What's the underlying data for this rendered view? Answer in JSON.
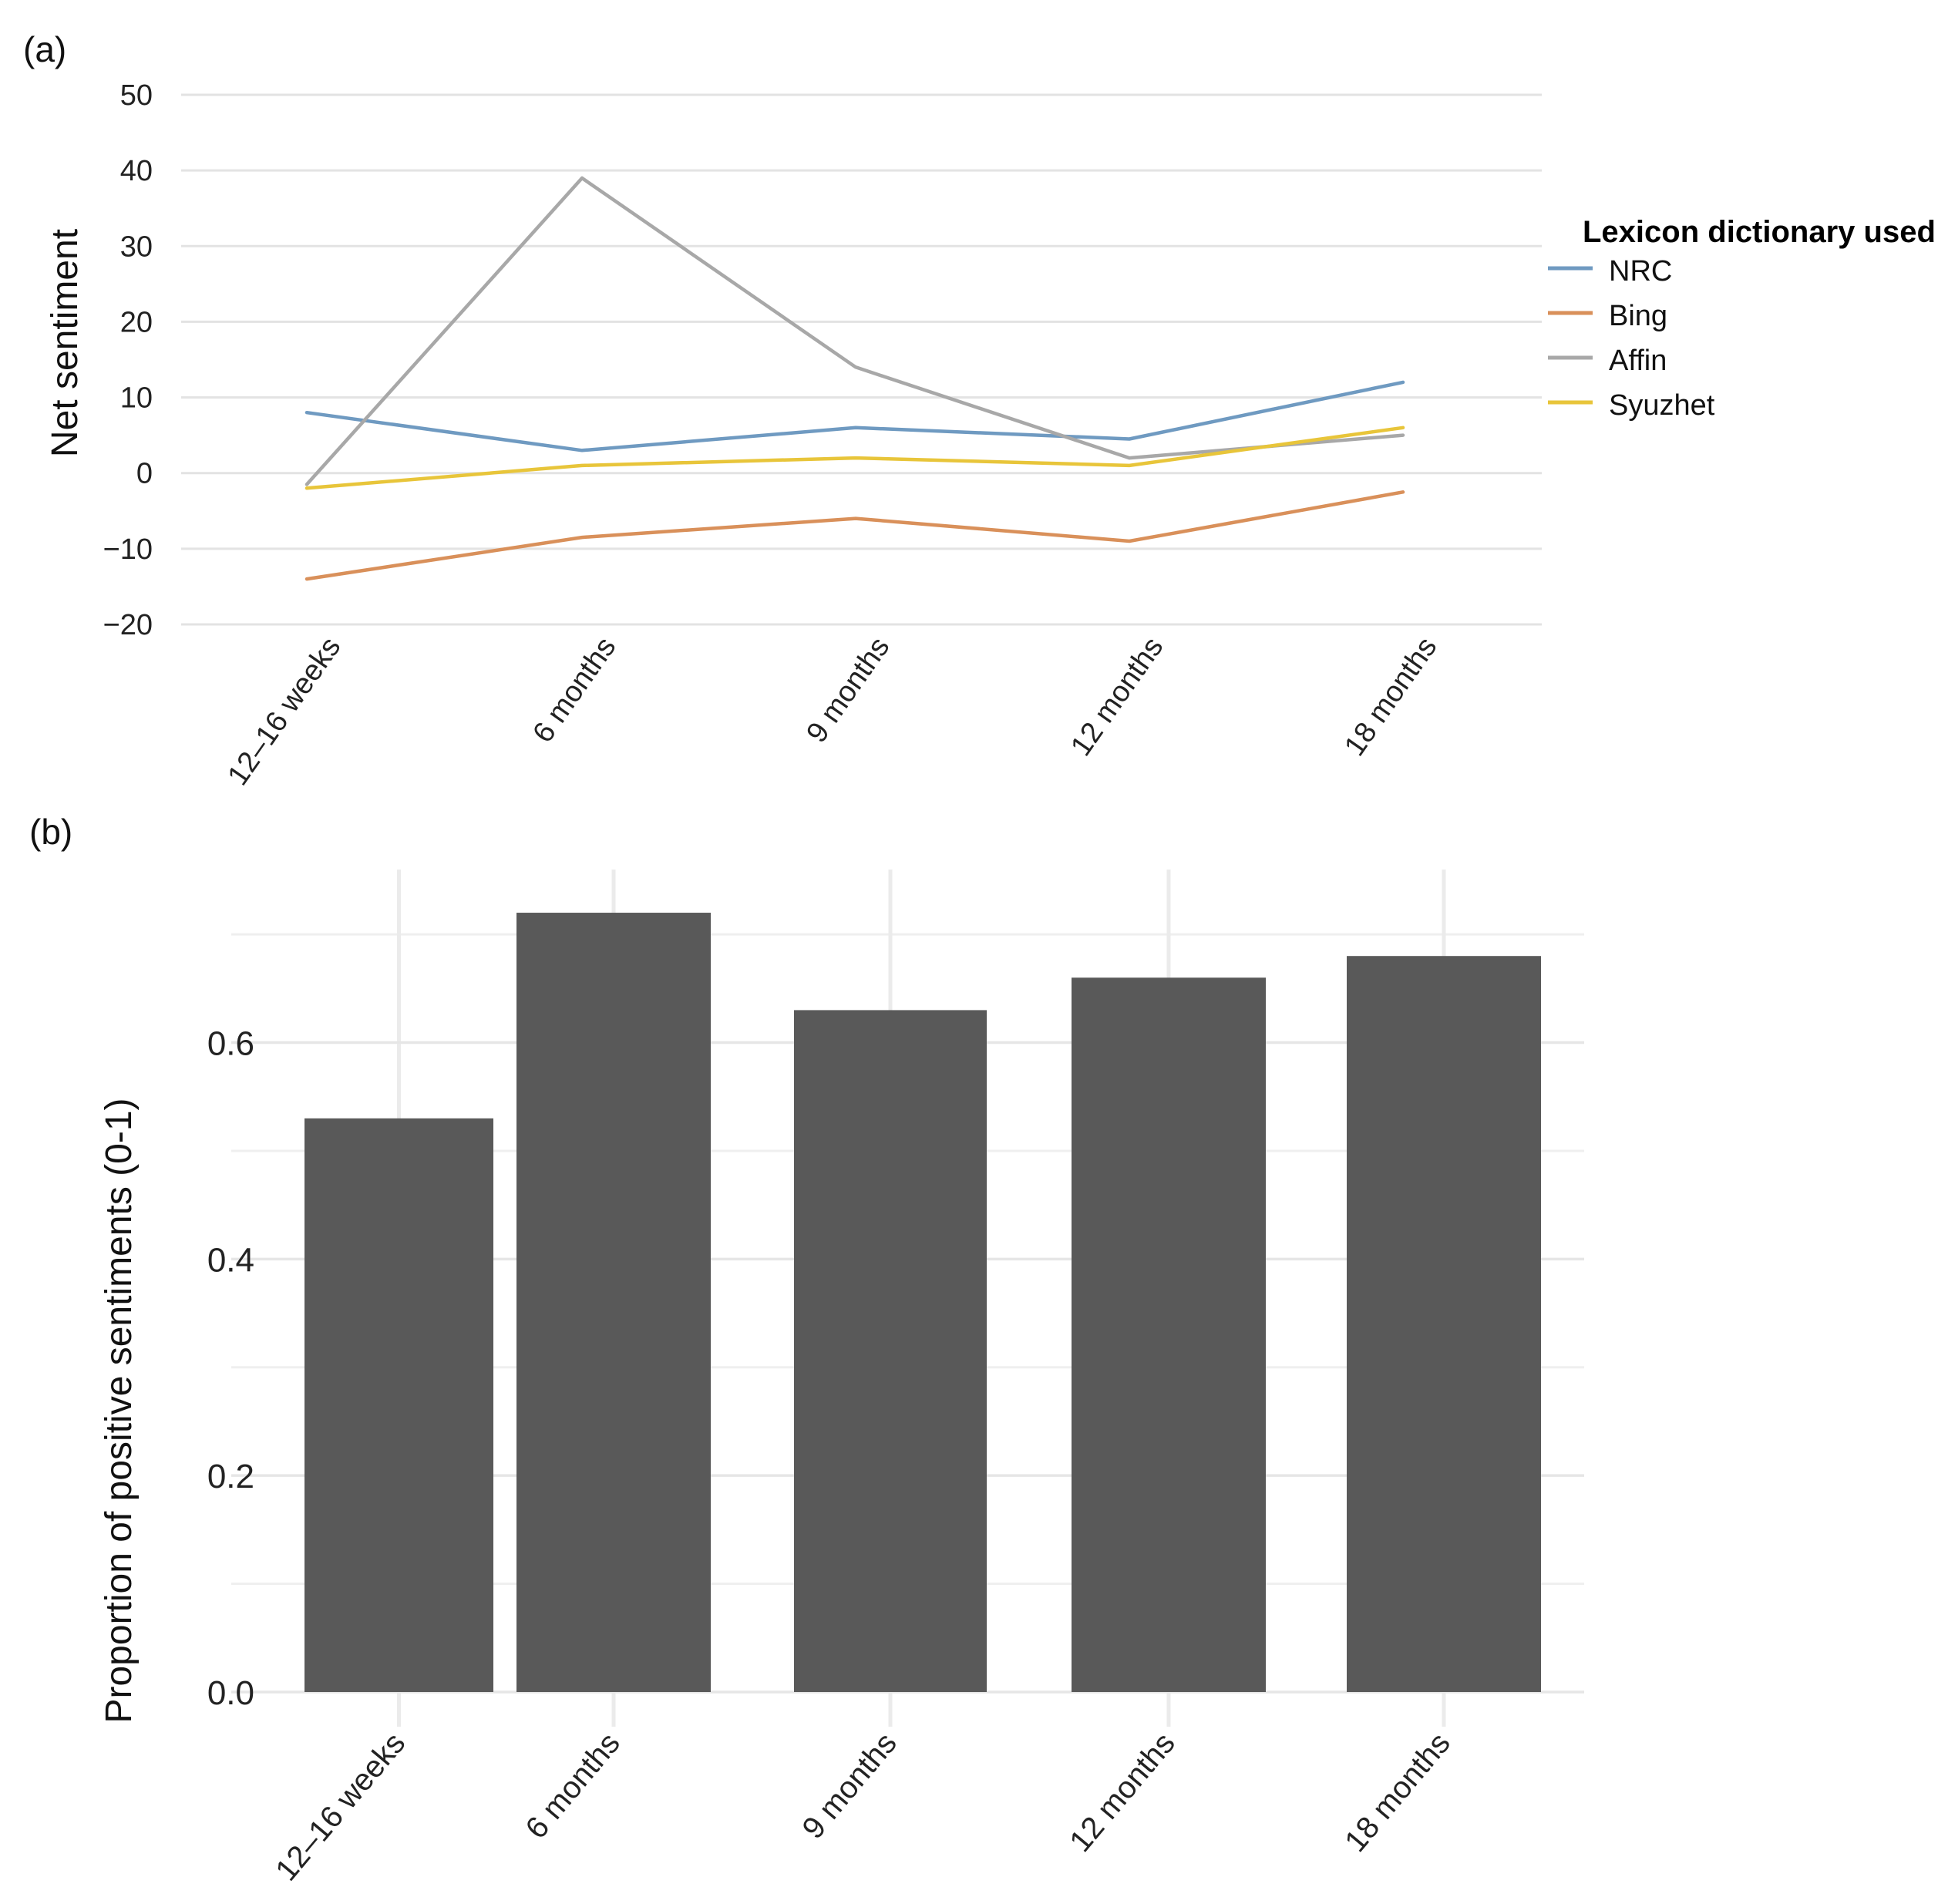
{
  "chart_data": [
    {
      "panel": "(a)",
      "type": "line",
      "categories": [
        "12–16 weeks",
        "6 months",
        "9 months",
        "12 months",
        "18 months"
      ],
      "ylabel": "Net sentiment",
      "ylim": [
        -20,
        50
      ],
      "yticks": [
        "50",
        "40",
        "30",
        "20",
        "10",
        "0",
        "−10",
        "−20"
      ],
      "ytick_values": [
        50,
        40,
        30,
        20,
        10,
        0,
        -10,
        -20
      ],
      "grid": true,
      "legend": {
        "title": "Lexicon dictionary used",
        "position": "right"
      },
      "series": [
        {
          "name": "NRC",
          "color": "#6f9ac1",
          "values": [
            8,
            3,
            6,
            4.5,
            12
          ]
        },
        {
          "name": "Bing",
          "color": "#d9905a",
          "values": [
            -14,
            -8.5,
            -6,
            -9,
            -2.5
          ]
        },
        {
          "name": "Affin",
          "color": "#a8a8a8",
          "values": [
            -1.5,
            39,
            14,
            2,
            5
          ]
        },
        {
          "name": "Syuzhet",
          "color": "#e8c53a",
          "values": [
            -2,
            1,
            2,
            1,
            6
          ]
        }
      ]
    },
    {
      "panel": "(b)",
      "type": "bar",
      "categories": [
        "12–16 weeks",
        "6 months",
        "9 months",
        "12 months",
        "18 months"
      ],
      "values": [
        0.53,
        0.72,
        0.63,
        0.66,
        0.68
      ],
      "color": "#595959",
      "ylabel": "Proportion of positive sentiments (0-1)",
      "ylim": [
        0,
        0.73
      ],
      "yticks": [
        "0.0",
        "0.2",
        "0.4",
        "0.6"
      ],
      "ytick_values": [
        0,
        0.2,
        0.4,
        0.6
      ],
      "grid": true
    }
  ]
}
